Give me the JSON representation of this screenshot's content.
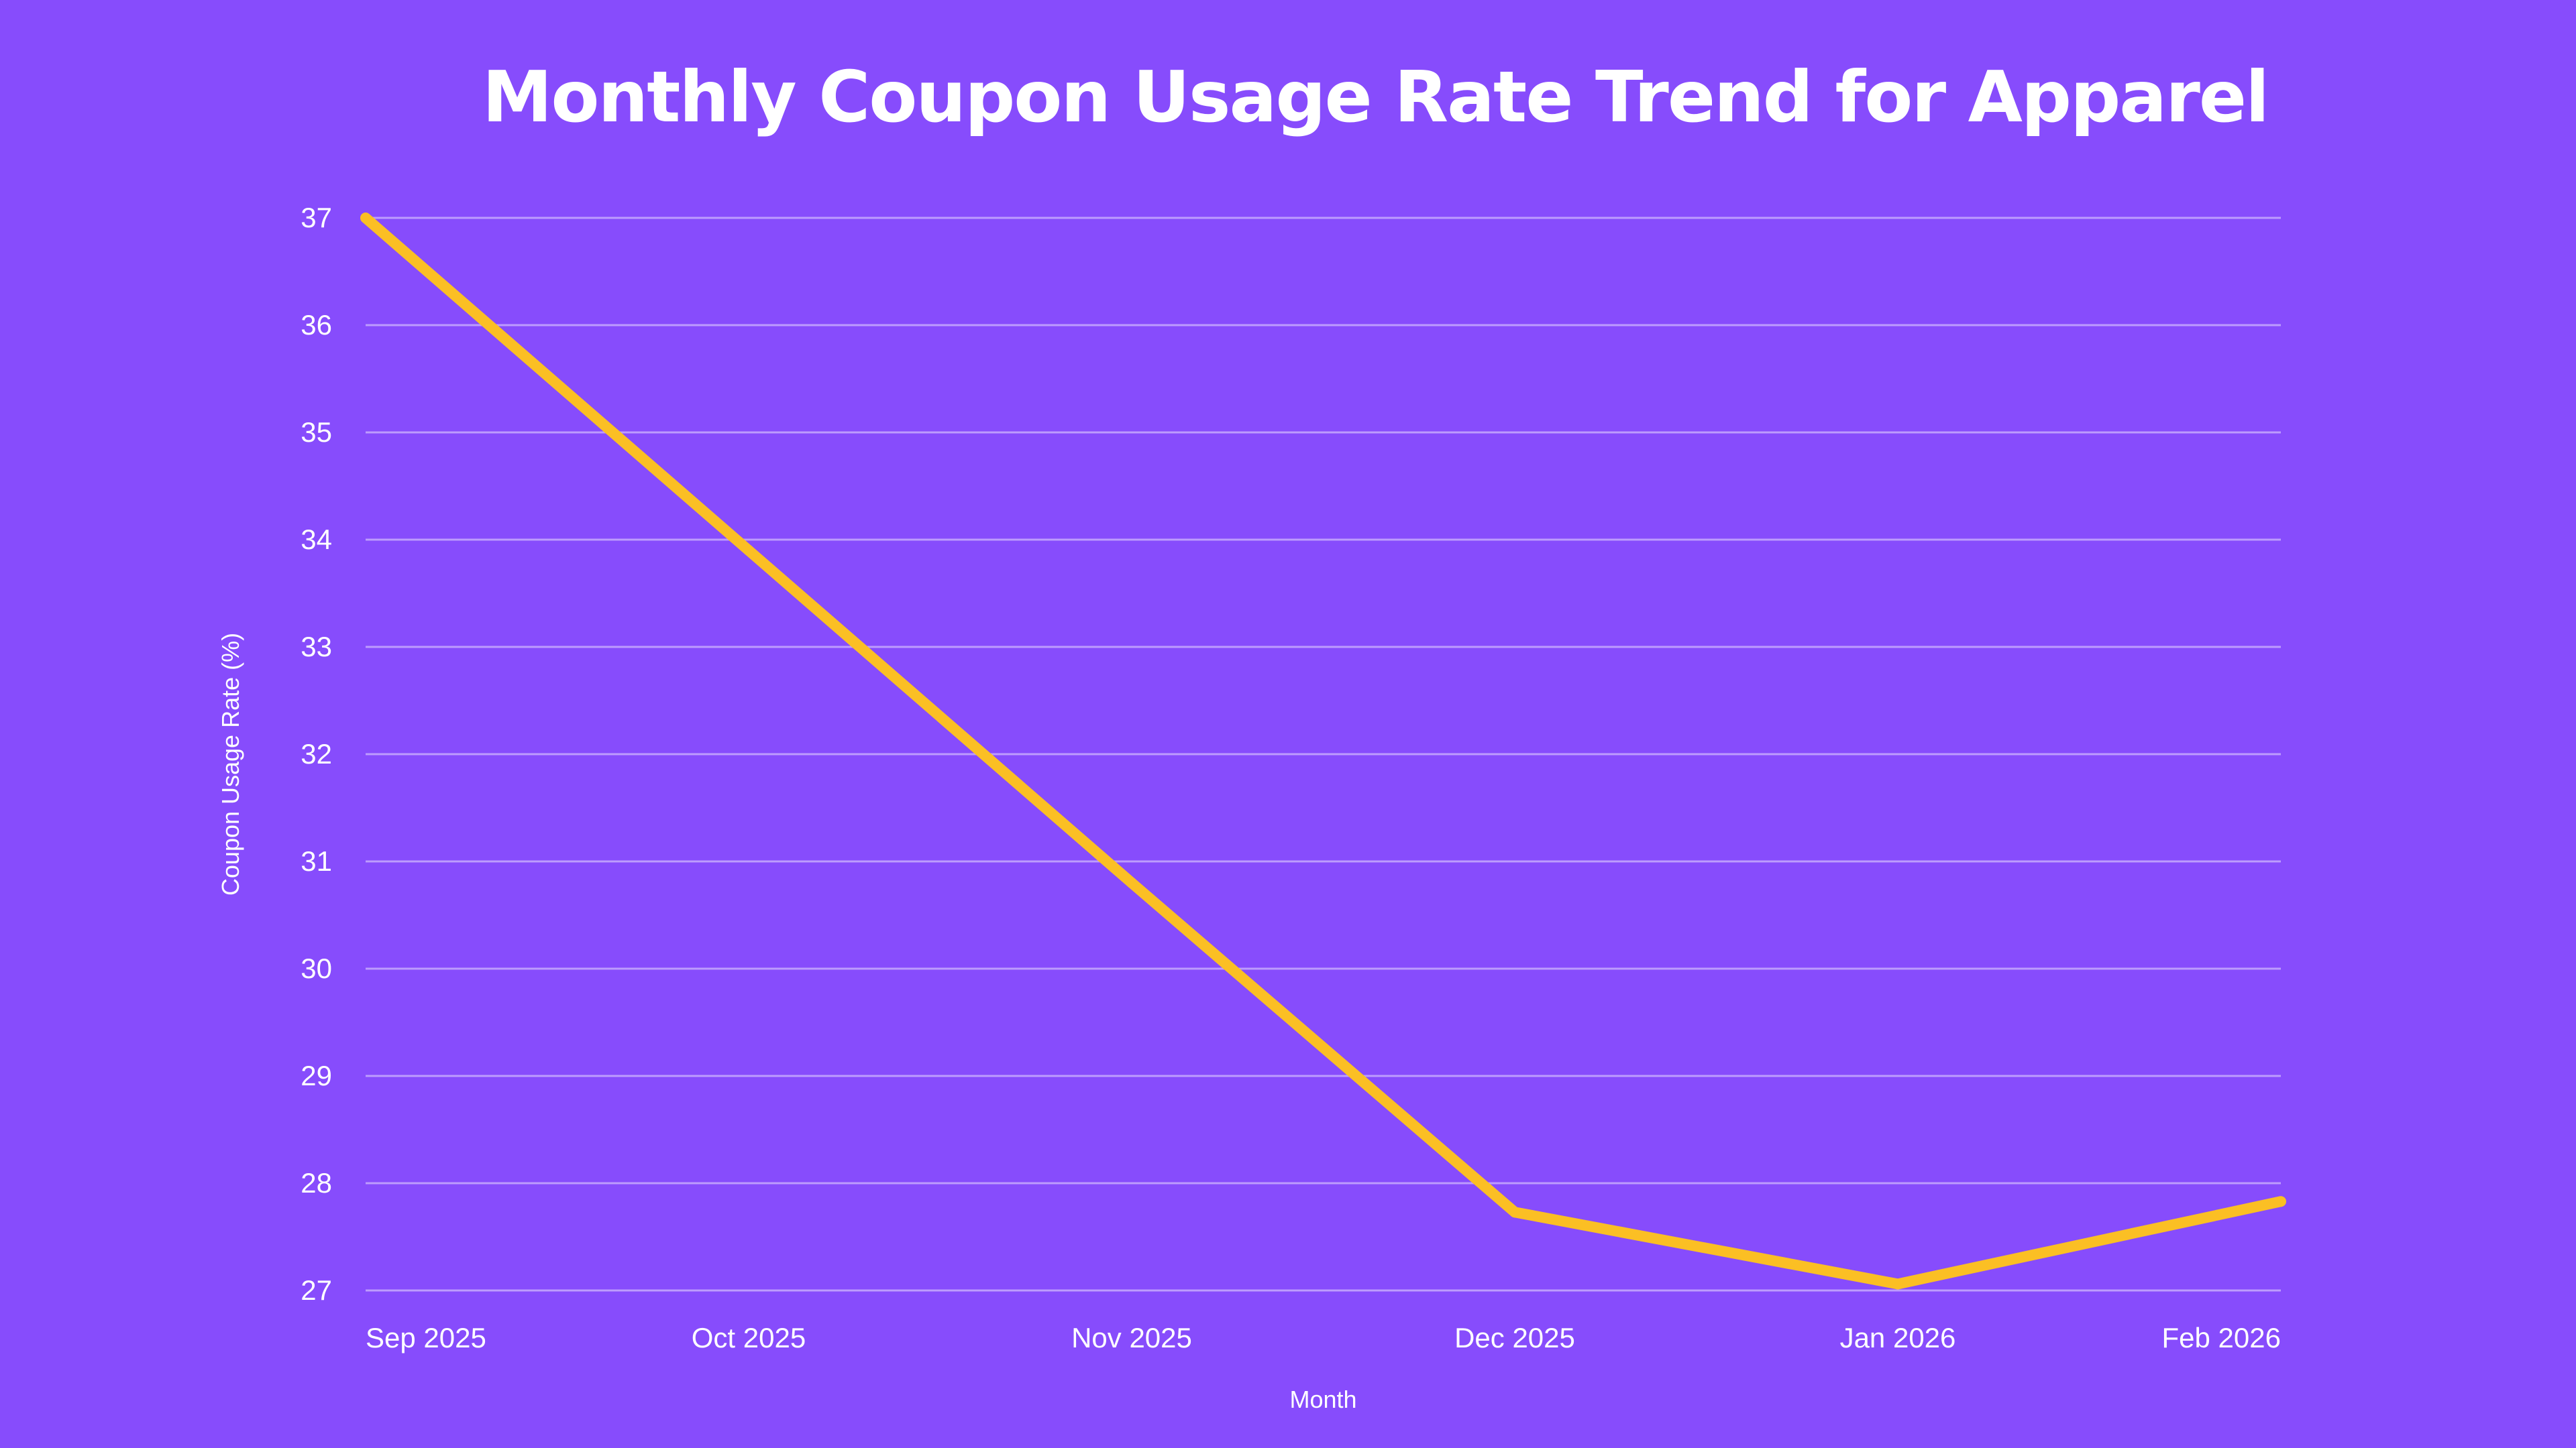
{
  "colors": {
    "background": "#874cfc",
    "line": "#fbbf24",
    "text": "#ffffff"
  },
  "chart_data": {
    "type": "line",
    "title": "Monthly Coupon Usage Rate Trend for Apparel",
    "xlabel": "Month",
    "ylabel": "Coupon Usage Rate (%)",
    "categories": [
      "Sep 2025",
      "Oct 2025",
      "Nov 2025",
      "Dec 2025",
      "Jan 2026",
      "Feb 2026"
    ],
    "series": [
      {
        "name": "Coupon Usage Rate (%)",
        "values": [
          37.0,
          33.9,
          30.8,
          27.73,
          27.06,
          27.83
        ]
      }
    ],
    "ylim": [
      27,
      37
    ],
    "yticks": [
      27,
      28,
      29,
      30,
      31,
      32,
      33,
      34,
      35,
      36,
      37
    ],
    "grid": true,
    "legend": "none"
  }
}
